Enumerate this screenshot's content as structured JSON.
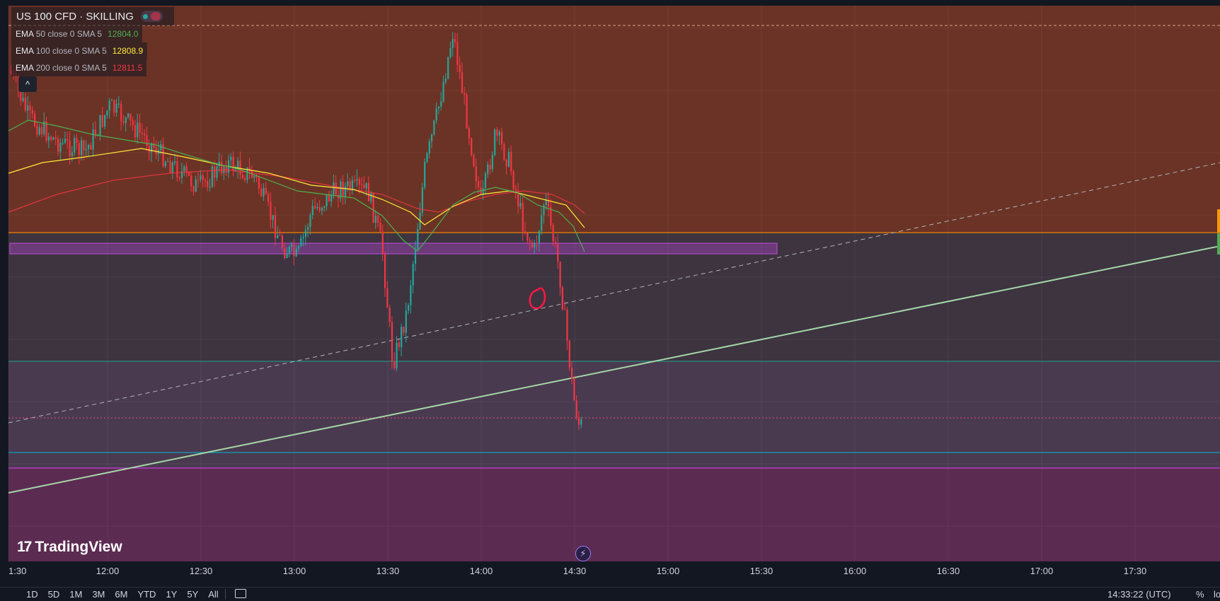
{
  "legend": {
    "symbol": "US 100 CFD · SKILLING",
    "collapse_icon": "chevron-up-icon",
    "indicators": [
      {
        "name": "EMA",
        "params": "50 close 0 SMA 5",
        "value": "12804.0",
        "color": "#4caf50"
      },
      {
        "name": "EMA",
        "params": "100 close 0 SMA 5",
        "value": "12808.9",
        "color": "#ffeb3b"
      },
      {
        "name": "EMA",
        "params": "200 close 0 SMA 5",
        "value": "12811.5",
        "color": "#f23645"
      }
    ]
  },
  "branding": {
    "logo_text": "TradingView",
    "logo_mark": "17",
    "bolt_icon": "lightning-icon"
  },
  "bottom_bar": {
    "periods": [
      "1D",
      "5D",
      "1M",
      "3M",
      "6M",
      "YTD",
      "1Y",
      "5Y",
      "All"
    ],
    "calendar_icon": "calendar-icon",
    "clock": "14:33:22 (UTC)",
    "percent_label": "%",
    "log_label": "lo"
  },
  "chart_data": {
    "type": "candlestick",
    "title": "",
    "x_ticks": [
      "1:30",
      "12:00",
      "12:30",
      "13:00",
      "13:30",
      "14:00",
      "14:30",
      "15:00",
      "15:30",
      "16:00",
      "16:30",
      "17:00",
      "17:30"
    ],
    "colors": {
      "up": "#26a69a",
      "down": "#f23645",
      "ema50": "#4caf50",
      "ema100": "#ffeb3b",
      "ema200": "#f23645"
    },
    "zones": [
      {
        "name": "upper-zone",
        "color": "#6b3325"
      },
      {
        "name": "middle-zone",
        "color": "#3d3440"
      },
      {
        "name": "lower-zone",
        "color": "#4a3a50"
      },
      {
        "name": "bottom-zone",
        "color": "#5c2b52"
      }
    ],
    "horizontal_lines": [
      {
        "name": "orange-level",
        "color": "#ff9800"
      },
      {
        "name": "teal-level",
        "color": "#26a69a"
      },
      {
        "name": "cyan-level",
        "color": "#00bcd4"
      },
      {
        "name": "magenta-level",
        "color": "#e040fb"
      }
    ],
    "trendlines": [
      {
        "name": "green-trendline",
        "color": "#a5d6a7"
      },
      {
        "name": "dashed-trendline",
        "color": "#b2b5be",
        "style": "dashed"
      }
    ],
    "annotation": {
      "name": "red-circle-marker",
      "color": "#ff1744"
    }
  }
}
